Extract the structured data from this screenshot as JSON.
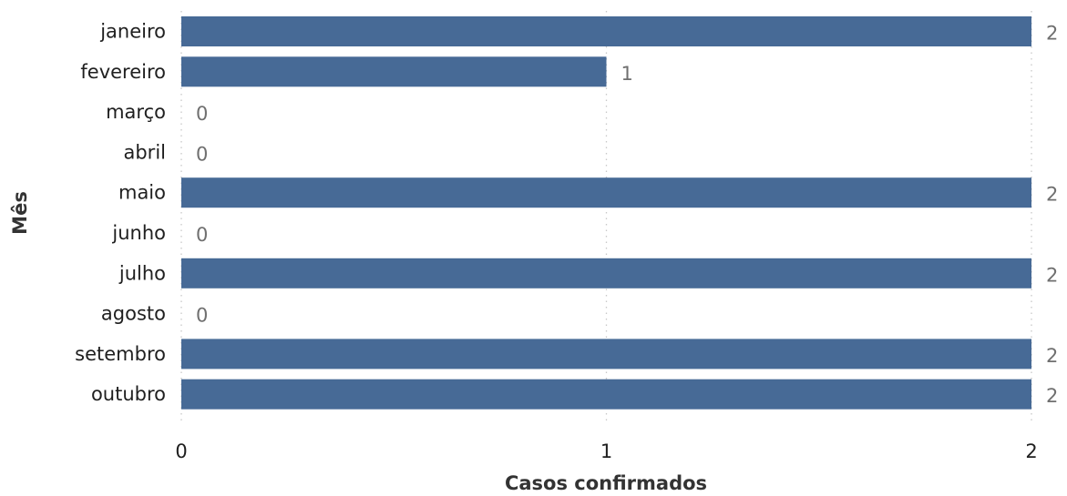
{
  "chart_data": {
    "type": "bar",
    "orientation": "horizontal",
    "categories": [
      "janeiro",
      "fevereiro",
      "março",
      "abril",
      "maio",
      "junho",
      "julho",
      "agosto",
      "setembro",
      "outubro"
    ],
    "values": [
      2,
      1,
      0,
      0,
      2,
      0,
      2,
      0,
      2,
      2
    ],
    "value_labels": [
      "2",
      "1",
      "0",
      "0",
      "2",
      "0",
      "2",
      "0",
      "2",
      "2"
    ],
    "xlabel": "Casos confirmados",
    "ylabel": "Mês",
    "xlim": [
      0,
      2
    ],
    "xticks": [
      0,
      1,
      2
    ],
    "xtick_labels": [
      "0",
      "1",
      "2"
    ],
    "grid": true,
    "colors": {
      "bar": "#476a96",
      "grid": "#c8c8c8",
      "value_label": "#6f6f6f"
    }
  }
}
